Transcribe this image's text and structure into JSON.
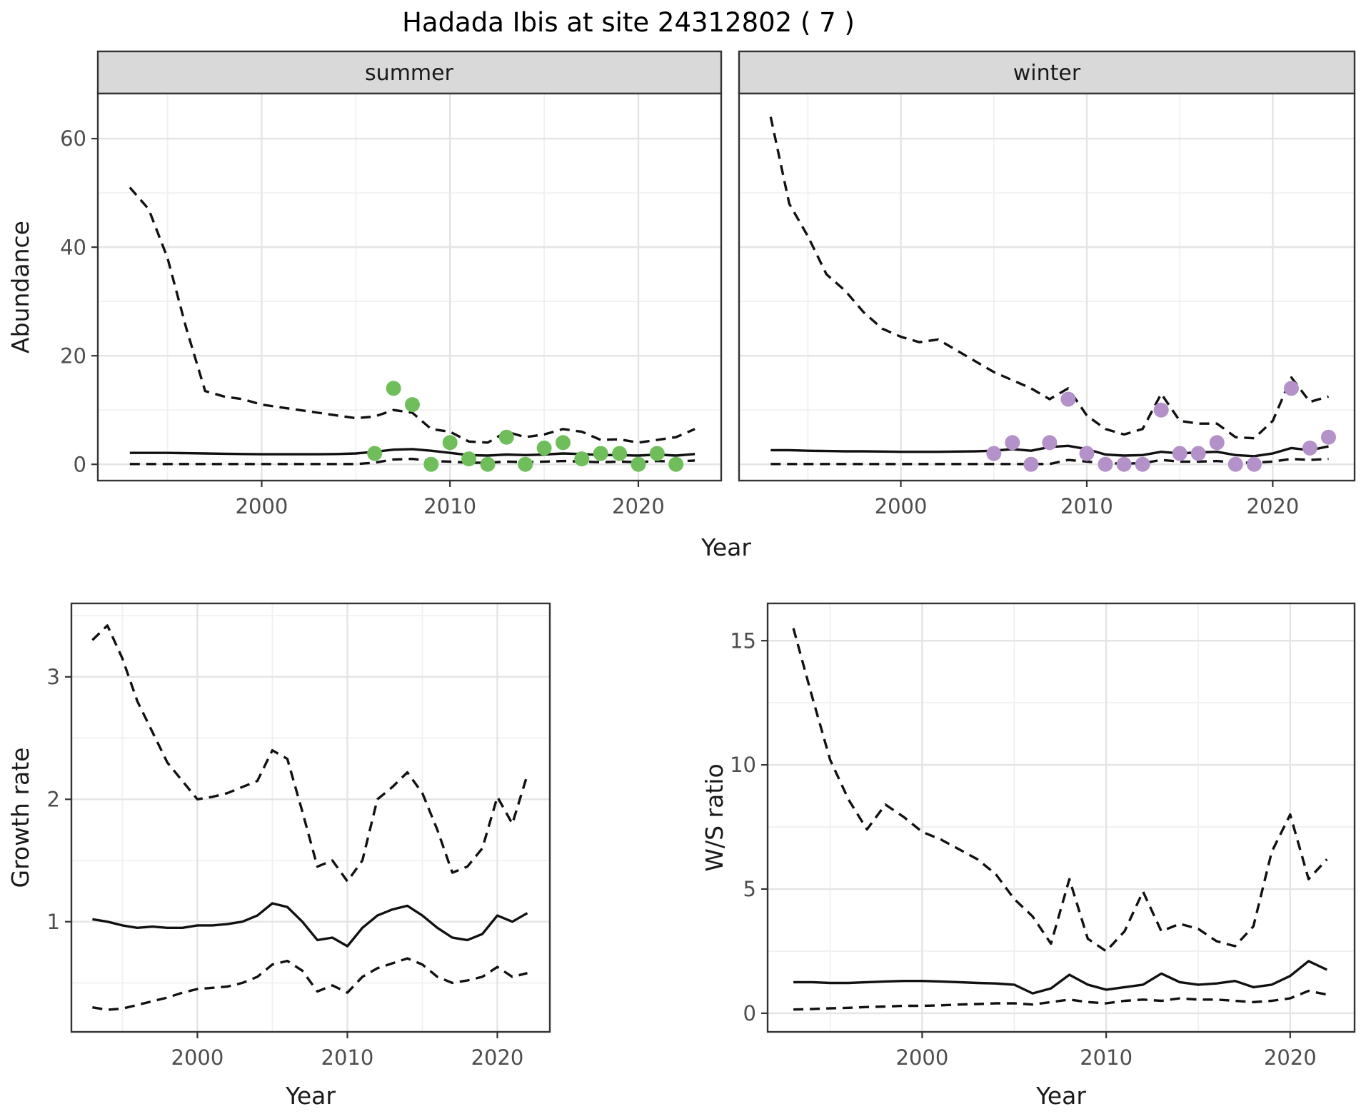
{
  "title": "Hadada Ibis at site 24312802 ( 7 )",
  "colors": {
    "summer_point": "#6fbe5b",
    "winter_point": "#b491c8",
    "line": "#111111",
    "strip_background": "#d9d9d9",
    "panel_border": "#333333",
    "grid_major": "#e4e4e4",
    "grid_minor": "#f0f0f0",
    "tick_text": "#4d4d4d"
  },
  "chart_data": [
    {
      "id": "abundance",
      "type": "line",
      "ylabel": "Abundance",
      "xlabel": "Year",
      "x": [
        1993,
        1994,
        1995,
        1996,
        1997,
        1998,
        1999,
        2000,
        2001,
        2002,
        2003,
        2004,
        2005,
        2006,
        2007,
        2008,
        2009,
        2010,
        2011,
        2012,
        2013,
        2014,
        2015,
        2016,
        2017,
        2018,
        2019,
        2020,
        2021,
        2022,
        2023
      ],
      "ylim": [
        -3,
        68.3
      ],
      "yticks": [
        0,
        20,
        40,
        60
      ],
      "yticks_minor": [
        10,
        30,
        50
      ],
      "xticks": [
        2000,
        2010,
        2020
      ],
      "xticks_minor": [
        1995,
        2005,
        2015
      ],
      "legend": "none",
      "facets": [
        {
          "label": "summer",
          "point_color": "#6fbe5b",
          "series": [
            {
              "name": "upper-ci",
              "style": "dashed",
              "values": [
                51,
                47,
                38,
                25,
                13.5,
                12.5,
                12,
                11,
                10.5,
                10,
                9.5,
                9,
                8.5,
                8.8,
                10,
                9.5,
                6.5,
                6,
                4.2,
                4,
                6,
                5,
                5.5,
                6.5,
                6,
                4.5,
                4.6,
                4,
                4.5,
                5,
                6.5
              ]
            },
            {
              "name": "median",
              "style": "solid",
              "values": [
                2.1,
                2.1,
                2.1,
                2.05,
                2,
                1.95,
                1.9,
                1.85,
                1.85,
                1.85,
                1.85,
                1.9,
                2,
                2.3,
                2.7,
                2.8,
                2.5,
                2.1,
                1.7,
                1.6,
                1.8,
                1.7,
                1.8,
                2,
                1.9,
                1.7,
                1.7,
                1.6,
                1.8,
                1.6,
                1.9
              ]
            },
            {
              "name": "lower-ci",
              "style": "dashed",
              "values": [
                0.05,
                0.05,
                0.05,
                0.05,
                0.05,
                0.05,
                0.05,
                0.05,
                0.05,
                0.05,
                0.05,
                0.05,
                0.05,
                0.3,
                0.9,
                1.0,
                0.6,
                0.5,
                0.3,
                0.3,
                0.5,
                0.4,
                0.5,
                0.6,
                0.5,
                0.4,
                0.5,
                0.4,
                0.6,
                0.5,
                0.7
              ]
            }
          ],
          "points": {
            "years": [
              2006,
              2007,
              2008,
              2009,
              2010,
              2011,
              2012,
              2013,
              2014,
              2015,
              2016,
              2017,
              2018,
              2019,
              2020,
              2021,
              2022
            ],
            "values": [
              2,
              14,
              11,
              0,
              4,
              1,
              0,
              5,
              0,
              3,
              4,
              1,
              2,
              2,
              0,
              2,
              0
            ]
          }
        },
        {
          "label": "winter",
          "point_color": "#b491c8",
          "series": [
            {
              "name": "upper-ci",
              "style": "dashed",
              "values": [
                64,
                48,
                42,
                35,
                32,
                28,
                25,
                23.5,
                22.5,
                23,
                21,
                19,
                17,
                15.5,
                14,
                12,
                14,
                9,
                6.5,
                5.5,
                6.5,
                13,
                8,
                7.5,
                7.5,
                5,
                4.8,
                8,
                16,
                11.5,
                12.5
              ]
            },
            {
              "name": "median",
              "style": "solid",
              "values": [
                2.6,
                2.6,
                2.5,
                2.45,
                2.4,
                2.4,
                2.35,
                2.3,
                2.3,
                2.3,
                2.35,
                2.4,
                2.5,
                2.8,
                2.5,
                3.2,
                3.4,
                2.8,
                1.8,
                1.6,
                1.7,
                2.3,
                2,
                2.2,
                2.3,
                1.7,
                1.5,
                2,
                3,
                2.6,
                3.3
              ]
            },
            {
              "name": "lower-ci",
              "style": "dashed",
              "values": [
                0.05,
                0.05,
                0.05,
                0.05,
                0.05,
                0.05,
                0.05,
                0.05,
                0.05,
                0.05,
                0.05,
                0.05,
                0.05,
                0.05,
                0.05,
                0.05,
                0.8,
                0.5,
                0.2,
                0.15,
                0.2,
                0.8,
                0.5,
                0.5,
                0.6,
                0.3,
                0.3,
                0.5,
                1,
                0.8,
                1
              ]
            }
          ],
          "points": {
            "years": [
              2005,
              2006,
              2007,
              2008,
              2009,
              2010,
              2011,
              2012,
              2013,
              2014,
              2015,
              2016,
              2017,
              2018,
              2019,
              2021,
              2022,
              2023
            ],
            "values": [
              2,
              4,
              0,
              4,
              12,
              2,
              0,
              0,
              0,
              10,
              2,
              2,
              4,
              0,
              0,
              14,
              3,
              5
            ]
          }
        }
      ]
    },
    {
      "id": "growth-rate",
      "type": "line",
      "ylabel": "Growth rate",
      "xlabel": "Year",
      "x": [
        1993,
        1994,
        1995,
        1996,
        1997,
        1998,
        1999,
        2000,
        2001,
        2002,
        2003,
        2004,
        2005,
        2006,
        2007,
        2008,
        2009,
        2010,
        2011,
        2012,
        2013,
        2014,
        2015,
        2016,
        2017,
        2018,
        2019,
        2020,
        2021,
        2022
      ],
      "ylim": [
        0.1,
        3.6
      ],
      "yticks": [
        1,
        2,
        3
      ],
      "yticks_minor": [
        0.5,
        1.5,
        2.5,
        3.5
      ],
      "xticks": [
        2000,
        2010,
        2020
      ],
      "xticks_minor": [
        1995,
        2005,
        2015
      ],
      "series": [
        {
          "name": "upper-ci",
          "style": "dashed",
          "values": [
            3.3,
            3.42,
            3.15,
            2.8,
            2.55,
            2.3,
            2.15,
            2.0,
            2.02,
            2.05,
            2.1,
            2.15,
            2.4,
            2.33,
            1.9,
            1.45,
            1.5,
            1.33,
            1.5,
            2.0,
            2.1,
            2.22,
            2.05,
            1.75,
            1.4,
            1.45,
            1.6,
            2.02,
            1.8,
            2.2
          ]
        },
        {
          "name": "median",
          "style": "solid",
          "values": [
            1.02,
            1.0,
            0.97,
            0.95,
            0.96,
            0.95,
            0.95,
            0.97,
            0.97,
            0.98,
            1.0,
            1.05,
            1.15,
            1.12,
            1.0,
            0.85,
            0.87,
            0.8,
            0.95,
            1.05,
            1.1,
            1.13,
            1.05,
            0.95,
            0.87,
            0.85,
            0.9,
            1.05,
            1.0,
            1.07
          ]
        },
        {
          "name": "lower-ci",
          "style": "dashed",
          "values": [
            0.3,
            0.28,
            0.29,
            0.32,
            0.35,
            0.38,
            0.42,
            0.45,
            0.46,
            0.47,
            0.5,
            0.55,
            0.65,
            0.68,
            0.6,
            0.43,
            0.48,
            0.42,
            0.55,
            0.62,
            0.66,
            0.7,
            0.65,
            0.55,
            0.5,
            0.52,
            0.55,
            0.63,
            0.55,
            0.58
          ]
        }
      ]
    },
    {
      "id": "ws-ratio",
      "type": "line",
      "ylabel": "W/S ratio",
      "xlabel": "Year",
      "x": [
        1993,
        1994,
        1995,
        1996,
        1997,
        1998,
        1999,
        2000,
        2001,
        2002,
        2003,
        2004,
        2005,
        2006,
        2007,
        2008,
        2009,
        2010,
        2011,
        2012,
        2013,
        2014,
        2015,
        2016,
        2017,
        2018,
        2019,
        2020,
        2021,
        2022
      ],
      "ylim": [
        -0.75,
        16.5
      ],
      "yticks": [
        0,
        5,
        10,
        15
      ],
      "yticks_minor": [
        2.5,
        7.5,
        12.5
      ],
      "xticks": [
        2000,
        2010,
        2020
      ],
      "xticks_minor": [
        1995,
        2005,
        2015
      ],
      "series": [
        {
          "name": "upper-ci",
          "style": "dashed",
          "values": [
            15.5,
            12.8,
            10.2,
            8.6,
            7.4,
            8.4,
            7.9,
            7.3,
            7.0,
            6.6,
            6.2,
            5.6,
            4.6,
            3.9,
            2.8,
            5.4,
            3.0,
            2.5,
            3.3,
            4.9,
            3.3,
            3.6,
            3.4,
            2.9,
            2.7,
            3.5,
            6.5,
            8.0,
            5.4,
            6.2
          ]
        },
        {
          "name": "median",
          "style": "solid",
          "values": [
            1.25,
            1.25,
            1.22,
            1.22,
            1.25,
            1.28,
            1.3,
            1.3,
            1.28,
            1.25,
            1.22,
            1.2,
            1.15,
            0.8,
            1.0,
            1.55,
            1.15,
            0.95,
            1.05,
            1.15,
            1.6,
            1.25,
            1.15,
            1.2,
            1.3,
            1.05,
            1.15,
            1.5,
            2.1,
            1.75
          ]
        },
        {
          "name": "lower-ci",
          "style": "dashed",
          "values": [
            0.15,
            0.17,
            0.2,
            0.22,
            0.25,
            0.27,
            0.3,
            0.3,
            0.32,
            0.35,
            0.37,
            0.4,
            0.4,
            0.35,
            0.45,
            0.55,
            0.45,
            0.4,
            0.5,
            0.55,
            0.5,
            0.6,
            0.55,
            0.55,
            0.5,
            0.45,
            0.5,
            0.6,
            0.9,
            0.75
          ]
        }
      ]
    }
  ]
}
